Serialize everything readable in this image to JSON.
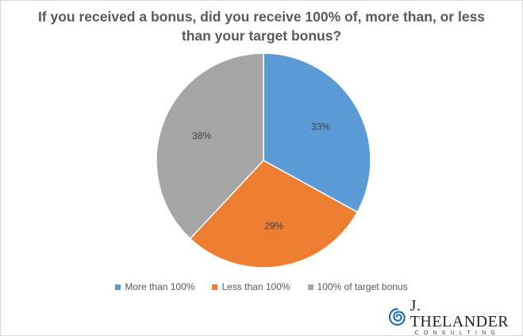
{
  "chart_data": {
    "type": "pie",
    "title_lines": [
      "If you received a bonus, did you receive 100% of, more than, or less",
      "than your target bonus?"
    ],
    "slices": [
      {
        "label": "More than 100%",
        "value": 33,
        "display": "33%",
        "color": "#5B9BD5"
      },
      {
        "label": "Less than 100%",
        "value": 29,
        "display": "29%",
        "color": "#ED7D31"
      },
      {
        "label": "100% of target bonus",
        "value": 38,
        "display": "38%",
        "color": "#A5A5A5"
      }
    ],
    "legend_position": "bottom"
  },
  "logo": {
    "name": "J. THELANDER",
    "subtitle": "CONSULTING",
    "icon": "spiral-logo-icon",
    "color": "#1F6FB5"
  }
}
